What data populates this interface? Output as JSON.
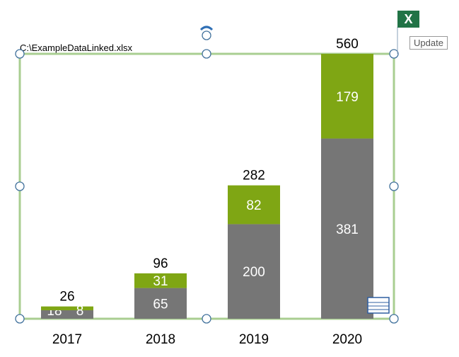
{
  "file_label": "C:\\ExampleDataLinked.xlsx",
  "excel_button": {
    "label": "X",
    "tooltip": "Update"
  },
  "colors": {
    "series1": "#767676",
    "series2": "#7fa614",
    "frame": "#70ad47"
  },
  "chart_data": {
    "type": "bar",
    "stacked": true,
    "categories": [
      "2017",
      "2018",
      "2019",
      "2020"
    ],
    "series": [
      {
        "values": [
          18,
          65,
          200,
          381
        ]
      },
      {
        "values": [
          8,
          31,
          82,
          179
        ]
      }
    ],
    "totals": [
      "26",
      "96",
      "282",
      "560"
    ],
    "ylim": [
      0,
      560
    ]
  }
}
